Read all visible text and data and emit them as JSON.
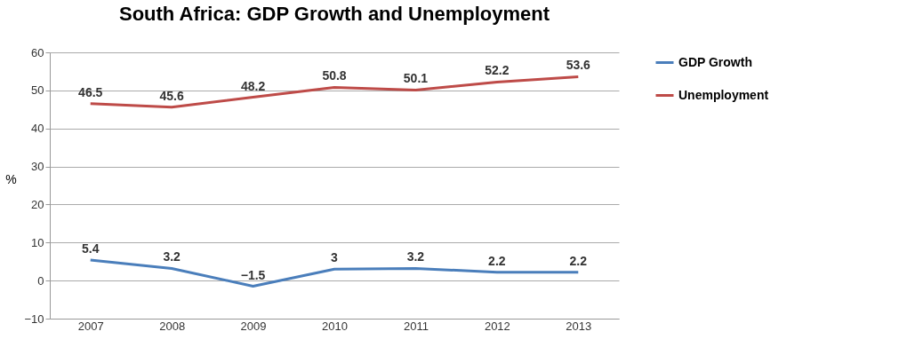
{
  "chart_data": {
    "type": "line",
    "title": "South Africa: GDP Growth and Unemployment",
    "ylabel": "%",
    "categories": [
      "2007",
      "2008",
      "2009",
      "2010",
      "2011",
      "2012",
      "2013"
    ],
    "series": [
      {
        "name": "GDP Growth",
        "color": "#4a7ebb",
        "values": [
          5.4,
          3.2,
          -1.5,
          3,
          3.2,
          2.2,
          2.2
        ]
      },
      {
        "name": "Unemployment",
        "color": "#be4b48",
        "values": [
          46.5,
          45.6,
          48.2,
          50.8,
          50.1,
          52.2,
          53.6
        ]
      }
    ],
    "ylim": [
      -10,
      60
    ],
    "yticks": [
      -10,
      0,
      10,
      20,
      30,
      40,
      50,
      60
    ],
    "grid": "y",
    "legend": "right",
    "data_labels": true
  }
}
